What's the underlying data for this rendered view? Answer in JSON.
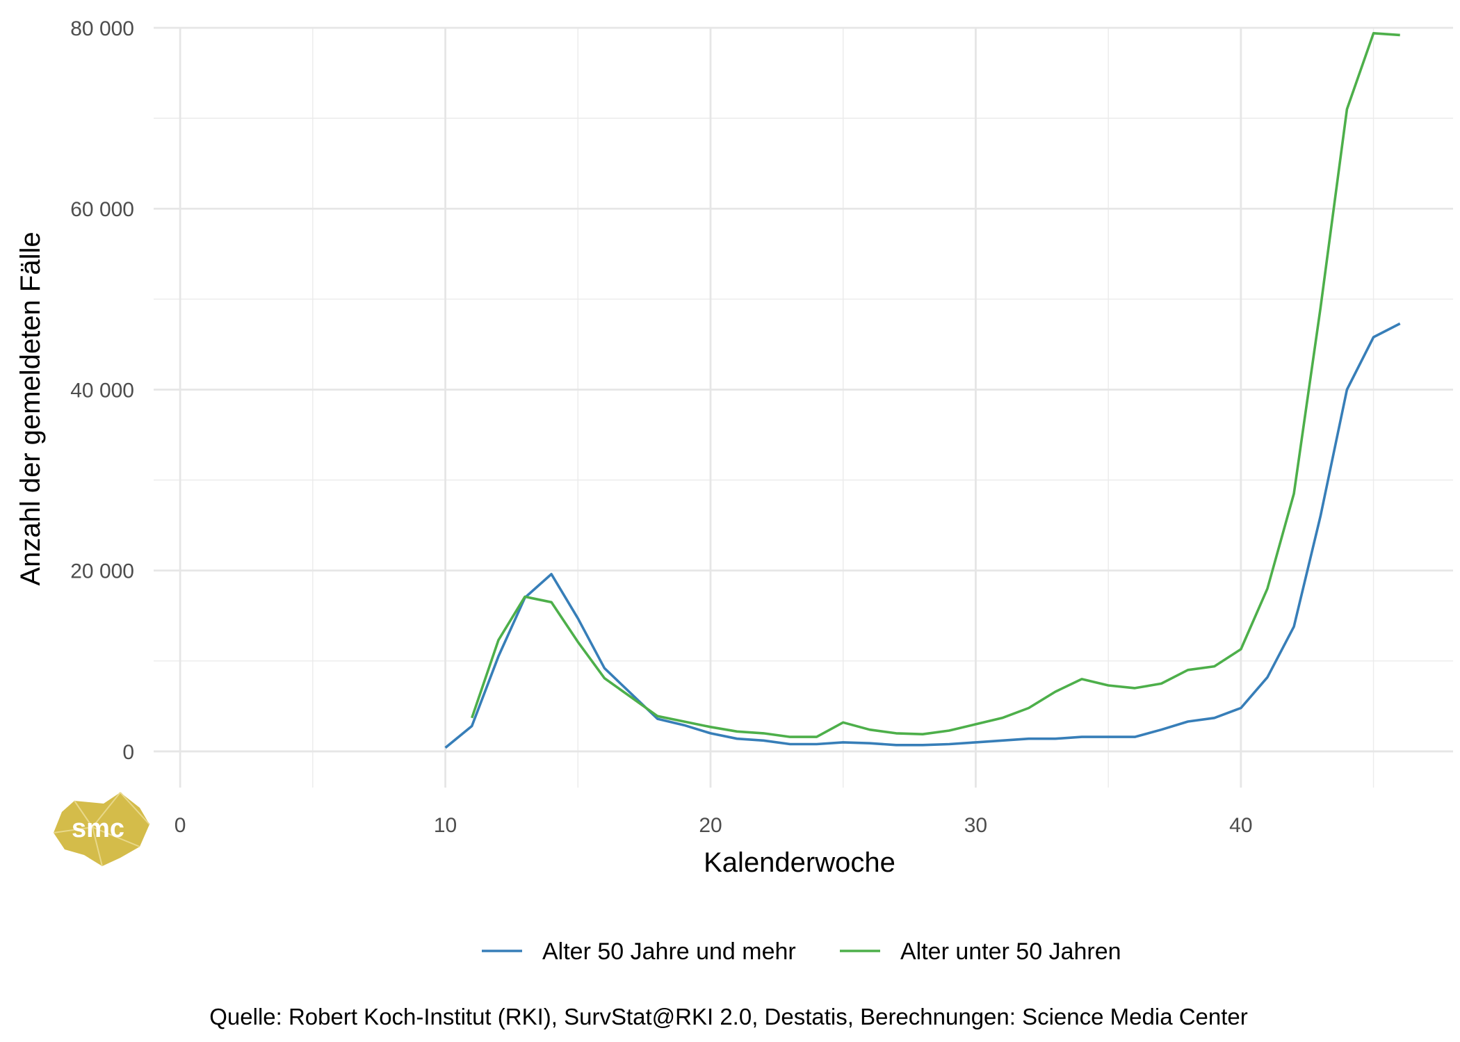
{
  "chart_data": {
    "type": "line",
    "xlabel": "Kalenderwoche",
    "ylabel": "Anzahl der gemeldeten Fälle",
    "xlim": [
      -1,
      48
    ],
    "ylim": [
      -4000,
      80000
    ],
    "x_ticks": [
      0,
      10,
      20,
      30,
      40
    ],
    "x_tick_labels": [
      "0",
      "10",
      "20",
      "30",
      "40"
    ],
    "x_minor_ticks": [
      5,
      15,
      25,
      35,
      45
    ],
    "y_ticks": [
      0,
      20000,
      40000,
      60000,
      80000
    ],
    "y_tick_labels": [
      "0",
      "20 000",
      "40 000",
      "60 000",
      "80 000"
    ],
    "y_minor_ticks": [
      10000,
      30000,
      50000,
      70000
    ],
    "grid": true,
    "legend_position": "bottom",
    "series": [
      {
        "name": "Alter 50 Jahre und mehr",
        "color": "#377eb8",
        "x": [
          10,
          11,
          12,
          13,
          14,
          15,
          16,
          17,
          18,
          19,
          20,
          21,
          22,
          23,
          24,
          25,
          26,
          27,
          28,
          29,
          30,
          31,
          32,
          33,
          34,
          35,
          36,
          37,
          38,
          39,
          40,
          41,
          42,
          43,
          44,
          45,
          46
        ],
        "values": [
          400,
          2800,
          10500,
          17000,
          19600,
          14700,
          9200,
          6400,
          3600,
          2900,
          2000,
          1400,
          1200,
          800,
          800,
          1000,
          900,
          700,
          700,
          800,
          1000,
          1200,
          1400,
          1400,
          1600,
          1600,
          1600,
          2400,
          3300,
          3700,
          4800,
          8200,
          13800,
          26000,
          40000,
          45800,
          47300
        ]
      },
      {
        "name": "Alter unter 50 Jahren",
        "color": "#4daf4a",
        "x": [
          11,
          12,
          13,
          14,
          15,
          16,
          17,
          18,
          19,
          20,
          21,
          22,
          23,
          24,
          25,
          26,
          27,
          28,
          29,
          30,
          31,
          32,
          33,
          34,
          35,
          36,
          37,
          38,
          39,
          40,
          41,
          42,
          43,
          44,
          45,
          46
        ],
        "values": [
          3700,
          12300,
          17100,
          16500,
          12100,
          8100,
          6000,
          3900,
          3300,
          2700,
          2200,
          2000,
          1600,
          1600,
          3200,
          2400,
          2000,
          1900,
          2300,
          3000,
          3700,
          4800,
          6600,
          8000,
          7300,
          7000,
          7500,
          9000,
          9400,
          11300,
          18000,
          28500,
          49000,
          71000,
          79400,
          79200
        ]
      }
    ],
    "caption": "Quelle: Robert Koch-Institut (RKI), SurvStat@RKI 2.0, Destatis, Berechnungen: Science Media Center"
  },
  "logo": {
    "text": "smc",
    "color": "#d4bc4a"
  }
}
